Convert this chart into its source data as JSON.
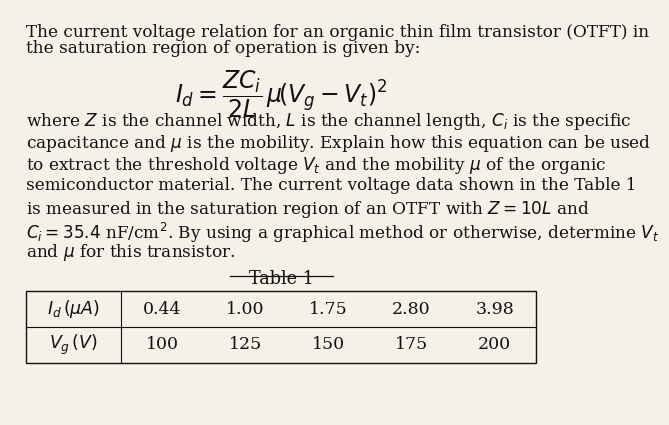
{
  "bg_color": "#f5f0e8",
  "text_color": "#111111",
  "title_line1": "The current voltage relation for an organic thin film transistor (OTFT) in",
  "title_line2": "the saturation region of operation is given by:",
  "equation": "$I_d = \\dfrac{ZC_i}{2L}\\,\\mu\\!\\left(V_g - V_t\\right)^2$",
  "body_lines": [
    "where $Z$ is the channel width, $L$ is the channel length, $C_i$ is the specific",
    "capacitance and $\\mu$ is the mobility. Explain how this equation can be used",
    "to extract the threshold voltage $V_t$ and the mobility $\\mu$ of the organic",
    "semiconductor material. The current voltage data shown in the Table 1",
    "is measured in the saturation region of an OTFT with $Z = 10L$ and",
    "$C_i = 35.4$ nF/cm$^2$. By using a graphical method or otherwise, determine $V_t$",
    "and $\\mu$ for this transistor."
  ],
  "table_title": "Table 1",
  "table_row1_label": "$I_d\\,(\\mu A)$",
  "table_row2_label": "$V_g\\,(V)$",
  "table_col_values_row1": [
    "0.44",
    "1.00",
    "1.75",
    "2.80",
    "3.98"
  ],
  "table_col_values_row2": [
    "100",
    "125",
    "150",
    "175",
    "200"
  ],
  "font_size_body": 12.2,
  "font_size_eq": 17,
  "font_size_table": 12.5
}
